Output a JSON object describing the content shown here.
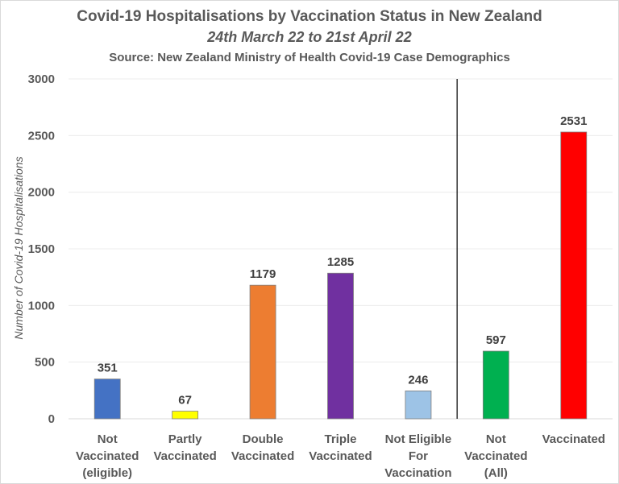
{
  "chart_data": {
    "type": "bar",
    "title": "Covid-19 Hospitalisations by Vaccination Status in New Zealand",
    "subtitle": "24th March 22 to 21st April 22",
    "source": "Source: New Zealand Ministry of Health Covid-19 Case Demographics",
    "xlabel": "",
    "ylabel": "Number of Covid-19 Hospitalisations",
    "ylim": [
      0,
      3000
    ],
    "yticks": [
      0,
      500,
      1000,
      1500,
      2000,
      2500,
      3000
    ],
    "grid": true,
    "categories": [
      [
        "Not",
        "Vaccinated",
        "(eligible)"
      ],
      [
        "Partly",
        "Vaccinated"
      ],
      [
        "Double",
        "Vaccinated"
      ],
      [
        "Triple",
        "Vaccinated"
      ],
      [
        "Not Eligible",
        "For",
        "Vaccination"
      ],
      [
        "Not",
        "Vaccinated",
        "(All)"
      ],
      [
        "Vaccinated"
      ]
    ],
    "values": [
      351,
      67,
      1179,
      1285,
      246,
      597,
      2531
    ],
    "colors": [
      "#4472c4",
      "#ffff00",
      "#ed7d31",
      "#7030a0",
      "#9dc3e6",
      "#00b050",
      "#ff0000"
    ],
    "separator_after_index": 4
  }
}
